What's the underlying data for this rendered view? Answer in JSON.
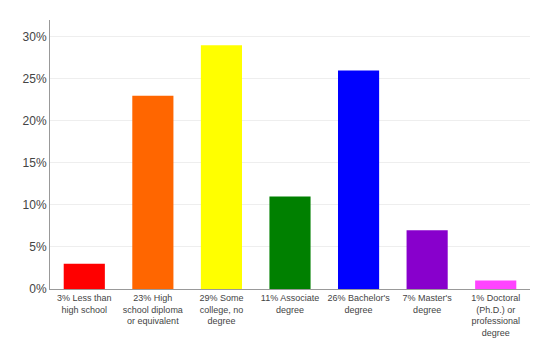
{
  "chart_data": {
    "type": "bar",
    "categories": [
      "3% Less than\nhigh school",
      "23% High\nschool diploma\nor equivalent",
      "29% Some\ncollege, no\ndegree",
      "11% Associate\ndegree",
      "26% Bachelor's\ndegree",
      "7% Master's\ndegree",
      "1% Doctoral\n(Ph.D.) or\nprofessional\ndegree"
    ],
    "values": [
      3,
      23,
      29,
      11,
      26,
      7,
      1
    ],
    "colors": [
      "#ff0000",
      "#ff6600",
      "#ffff00",
      "#008000",
      "#0000ff",
      "#8800cc",
      "#ff44ff"
    ],
    "ylim": [
      0,
      32
    ],
    "yticks": [
      {
        "value": 0,
        "label": "0%"
      },
      {
        "value": 5,
        "label": "5%"
      },
      {
        "value": 10,
        "label": "10%"
      },
      {
        "value": 15,
        "label": "15%"
      },
      {
        "value": 20,
        "label": "20%"
      },
      {
        "value": 25,
        "label": "25%"
      },
      {
        "value": 30,
        "label": "30%"
      }
    ],
    "grid": true
  }
}
